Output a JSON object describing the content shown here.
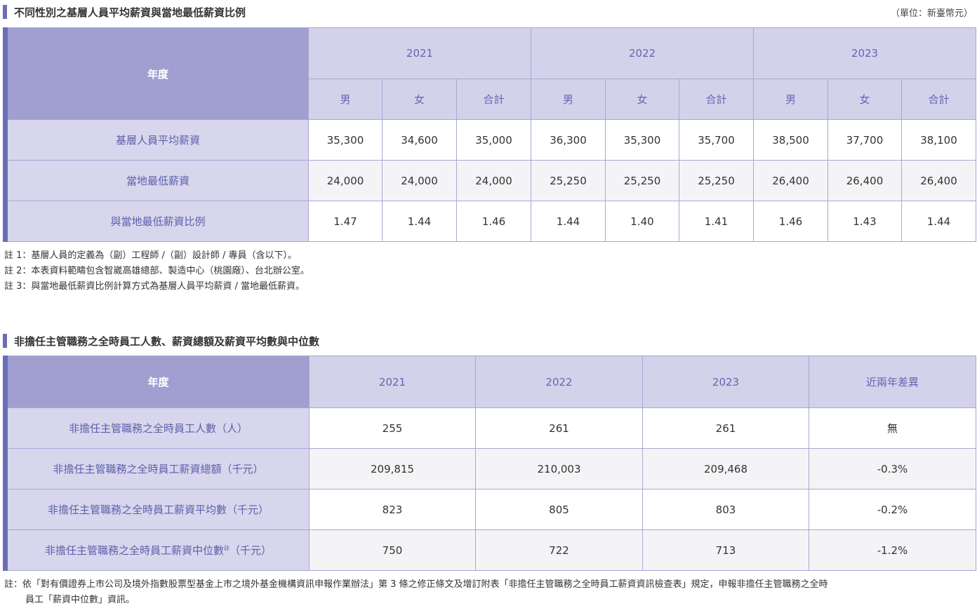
{
  "section1": {
    "title": "不同性別之基層人員平均薪資與當地最低薪資比例",
    "unit": "（單位：新臺幣元）",
    "corner": "年度",
    "years": [
      "2021",
      "2022",
      "2023"
    ],
    "genders": [
      "男",
      "女",
      "合計",
      "男",
      "女",
      "合計",
      "男",
      "女",
      "合計"
    ],
    "rows": [
      {
        "label": "基層人員平均薪資",
        "values": [
          "35,300",
          "34,600",
          "35,000",
          "36,300",
          "35,300",
          "35,700",
          "38,500",
          "37,700",
          "38,100"
        ]
      },
      {
        "label": "當地最低薪資",
        "values": [
          "24,000",
          "24,000",
          "24,000",
          "25,250",
          "25,250",
          "25,250",
          "26,400",
          "26,400",
          "26,400"
        ]
      },
      {
        "label": "與當地最低薪資比例",
        "values": [
          "1.47",
          "1.44",
          "1.46",
          "1.44",
          "1.40",
          "1.41",
          "1.46",
          "1.43",
          "1.44"
        ]
      }
    ],
    "notes": [
      "註 1：基層人員的定義為（副）工程師 /（副）設計師 / 專員（含以下）。",
      "註 2：本表資料範疇包含智崴高雄總部、製造中心（桃園廠）、台北辦公室。",
      "註 3：與當地最低薪資比例計算方式為基層人員平均薪資 / 當地最低薪資。"
    ]
  },
  "section2": {
    "title": "非擔任主管職務之全時員工人數、薪資總額及薪資平均數與中位數",
    "headers": [
      "年度",
      "2021",
      "2022",
      "2023",
      "近兩年差異"
    ],
    "rows": [
      {
        "label": "非擔任主管職務之全時員工人數（人）",
        "values": [
          "255",
          "261",
          "261",
          "無"
        ]
      },
      {
        "label": "非擔任主管職務之全時員工薪資總額（千元）",
        "values": [
          "209,815",
          "210,003",
          "209,468",
          "-0.3%"
        ]
      },
      {
        "label": "非擔任主管職務之全時員工薪資平均數（千元）",
        "values": [
          "823",
          "805",
          "803",
          "-0.2%"
        ]
      },
      {
        "label_main": "非擔任主管職務之全時員工薪資中位數",
        "label_sup": "註",
        "label_tail": "（千元）",
        "values": [
          "750",
          "722",
          "713",
          "-1.2%"
        ]
      }
    ],
    "note_line1": "註：依「對有價證券上市公司及境外指數股票型基金上市之境外基金機構資訊申報作業辦法」第 3 條之修正條文及增訂附表「非擔任主管職務之全時員工薪資資訊檢查表」規定，申報非擔任主管職務之全時",
    "note_line2": "員工「薪資中位數」資訊。"
  }
}
